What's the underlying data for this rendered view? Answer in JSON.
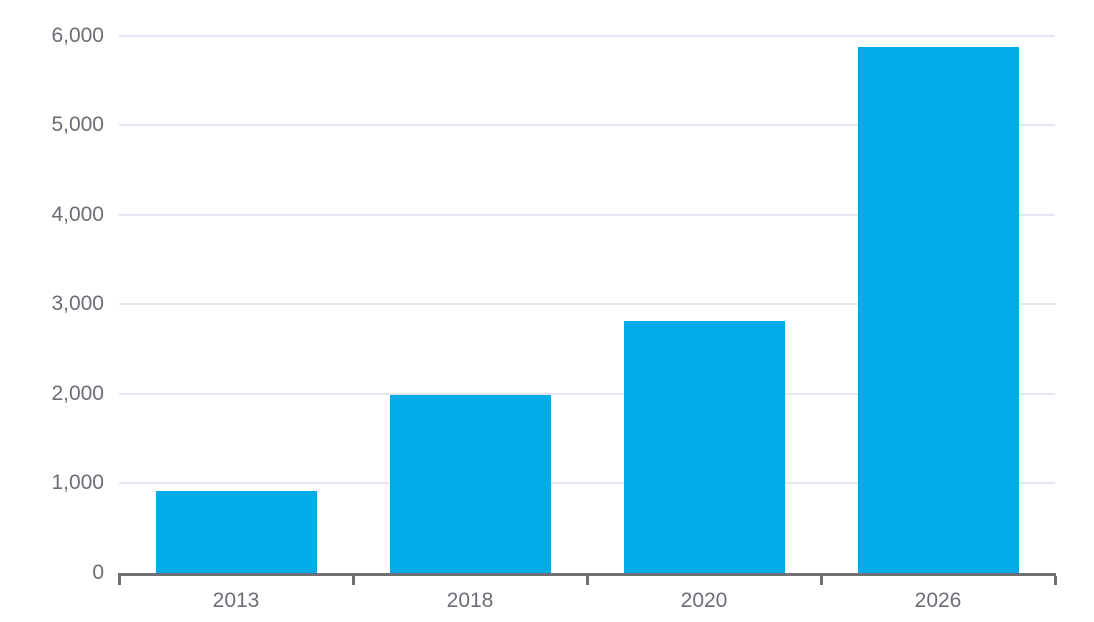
{
  "chart_data": {
    "type": "bar",
    "categories": [
      "2013",
      "2018",
      "2020",
      "2026"
    ],
    "values": [
      920,
      1990,
      2810,
      5870
    ],
    "title": "",
    "xlabel": "",
    "ylabel": "",
    "ylim": [
      0,
      6000
    ],
    "ytick_step": 1000,
    "ytick_labels": [
      "0",
      "1,000",
      "2,000",
      "3,000",
      "4,000",
      "5,000",
      "6,000"
    ],
    "grid": true,
    "legend": false,
    "legend_position": "none",
    "colors": {
      "bar": "#00ACE7",
      "gridline": "#E4E7F1",
      "axis": "#6F7076",
      "tick_label": "#6B6E76",
      "background": "#FFFFFF"
    }
  }
}
